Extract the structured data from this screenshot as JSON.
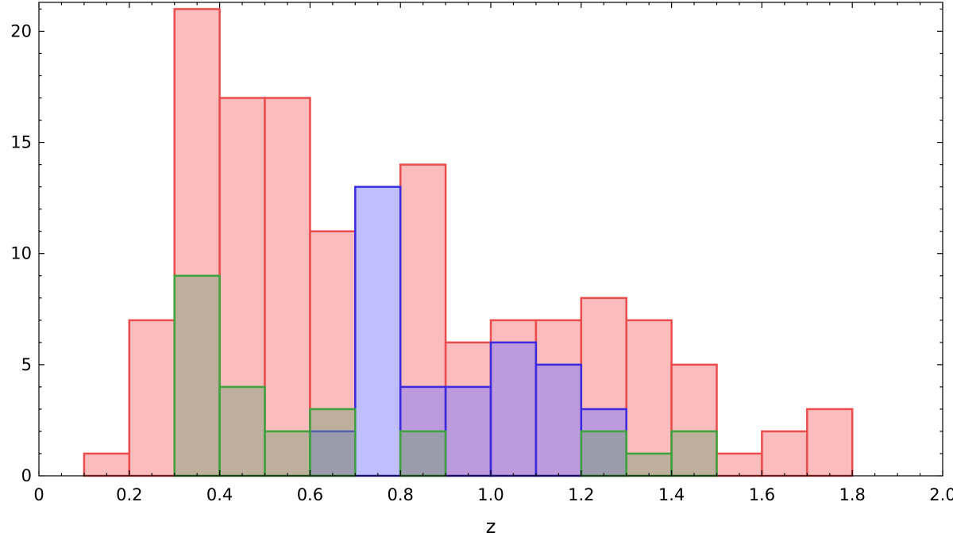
{
  "chart_data": {
    "type": "bar",
    "title": "",
    "xlabel": "z",
    "ylabel": "",
    "xlim": [
      0,
      2.0
    ],
    "ylim": [
      0,
      21.3
    ],
    "bin_width": 0.1,
    "bin_starts": [
      0.1,
      0.2,
      0.3,
      0.4,
      0.5,
      0.6,
      0.7,
      0.8,
      0.9,
      1.0,
      1.1,
      1.2,
      1.3,
      1.4,
      1.5,
      1.6,
      1.7
    ],
    "x_ticks": [
      0,
      0.2,
      0.4,
      0.6,
      0.8,
      1.0,
      1.2,
      1.4,
      1.6,
      1.8,
      2.0
    ],
    "x_tick_labels": [
      "0",
      "0.2",
      "0.4",
      "0.6",
      "0.8",
      "1.0",
      "1.2",
      "1.4",
      "1.6",
      "1.8",
      "2.0"
    ],
    "y_ticks": [
      0,
      5,
      10,
      15,
      20
    ],
    "y_tick_labels": [
      "0",
      "5",
      "10",
      "15",
      "20"
    ],
    "grid": false,
    "legend": "none",
    "series": [
      {
        "values": [
          1,
          7,
          21,
          17,
          17,
          11,
          0,
          14,
          6,
          7,
          7,
          8,
          7,
          5,
          1,
          2,
          3
        ],
        "fill": "#fbbcbd",
        "stroke": "#ec4b4b",
        "fill_opacity": 1
      },
      {
        "values": [
          0,
          0,
          0,
          0,
          0,
          2,
          13,
          4,
          4,
          6,
          5,
          3,
          0,
          0,
          0,
          0,
          0
        ],
        "fill": "#7070ff",
        "stroke": "#3a2ae0",
        "fill_opacity": 0.45
      },
      {
        "values": [
          0,
          0,
          9,
          4,
          2,
          3,
          0,
          2,
          0,
          0,
          0,
          2,
          1,
          2,
          0,
          0,
          0
        ],
        "fill": "#70a070",
        "stroke": "#3da33d",
        "fill_opacity": 0.45
      }
    ]
  }
}
